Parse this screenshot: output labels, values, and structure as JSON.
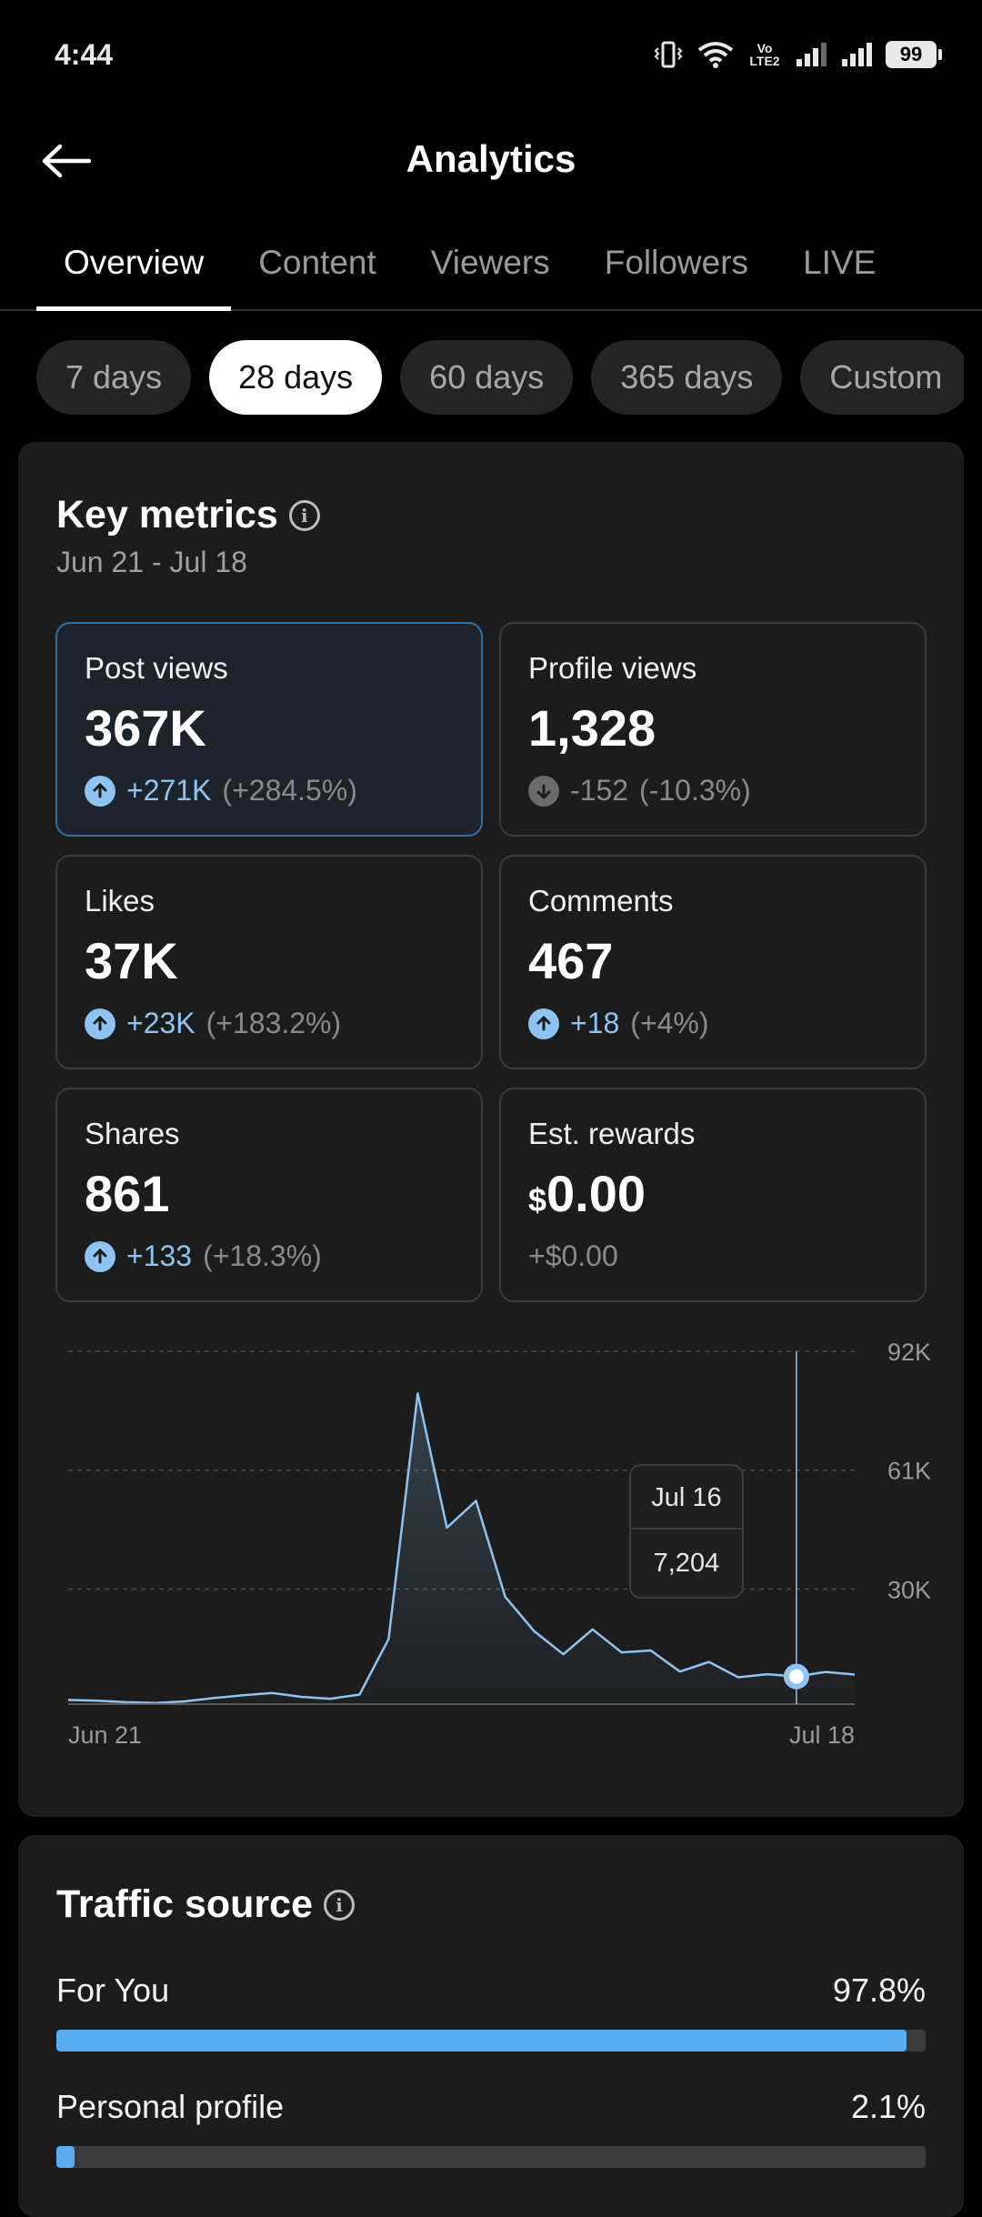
{
  "status_bar": {
    "time": "4:44",
    "battery": "99",
    "network_label": "Vo LTE2"
  },
  "header": {
    "title": "Analytics"
  },
  "tabs": [
    "Overview",
    "Content",
    "Viewers",
    "Followers",
    "LIVE"
  ],
  "active_tab": "Overview",
  "date_chips": [
    "7 days",
    "28 days",
    "60 days",
    "365 days",
    "Custom"
  ],
  "active_chip": "28 days",
  "key_metrics": {
    "title": "Key metrics",
    "date_range": "Jun 21 - Jul 18",
    "items": [
      {
        "label": "Post views",
        "value": "367K",
        "delta": "+271K",
        "pct": "(+284.5%)",
        "direction": "up"
      },
      {
        "label": "Profile views",
        "value": "1,328",
        "delta": "-152",
        "pct": "(-10.3%)",
        "direction": "down"
      },
      {
        "label": "Likes",
        "value": "37K",
        "delta": "+23K",
        "pct": "(+183.2%)",
        "direction": "up"
      },
      {
        "label": "Comments",
        "value": "467",
        "delta": "+18",
        "pct": "(+4%)",
        "direction": "up"
      },
      {
        "label": "Shares",
        "value": "861",
        "delta": "+133",
        "pct": "(+18.3%)",
        "direction": "up"
      },
      {
        "label": "Est. rewards",
        "currency": "$",
        "value": "0.00",
        "delta": "+$0.00",
        "pct": "",
        "direction": "none"
      }
    ]
  },
  "chart_data": {
    "type": "area",
    "x": [
      "Jun 21",
      "Jun 22",
      "Jun 23",
      "Jun 24",
      "Jun 25",
      "Jun 26",
      "Jun 27",
      "Jun 28",
      "Jun 29",
      "Jun 30",
      "Jul 1",
      "Jul 2",
      "Jul 3",
      "Jul 4",
      "Jul 5",
      "Jul 6",
      "Jul 7",
      "Jul 8",
      "Jul 9",
      "Jul 10",
      "Jul 11",
      "Jul 12",
      "Jul 13",
      "Jul 14",
      "Jul 15",
      "Jul 16",
      "Jul 17",
      "Jul 18"
    ],
    "values": [
      1100,
      900,
      500,
      300,
      700,
      1600,
      2300,
      2900,
      1900,
      1400,
      2500,
      17000,
      81000,
      46000,
      53000,
      28000,
      19000,
      13000,
      19500,
      13500,
      14000,
      8500,
      11000,
      7000,
      7800,
      7204,
      8400,
      7700
    ],
    "y_ticks": [
      "30K",
      "61K",
      "92K"
    ],
    "y_tick_values": [
      30000,
      61000,
      92000
    ],
    "ylim": [
      0,
      92000
    ],
    "x_labels": [
      "Jun 21",
      "Jul 18"
    ],
    "tooltip": {
      "date": "Jul 16",
      "value": "7,204",
      "index": 25
    },
    "grid": true,
    "line_color": "#8ec3f2"
  },
  "traffic_source": {
    "title": "Traffic source",
    "items": [
      {
        "label": "For You",
        "value": "97.8%",
        "fraction": 0.978
      },
      {
        "label": "Personal profile",
        "value": "2.1%",
        "fraction": 0.021
      }
    ]
  },
  "colors": {
    "accent": "#5aacf0",
    "background": "#000000",
    "card": "#1c1c1c"
  }
}
